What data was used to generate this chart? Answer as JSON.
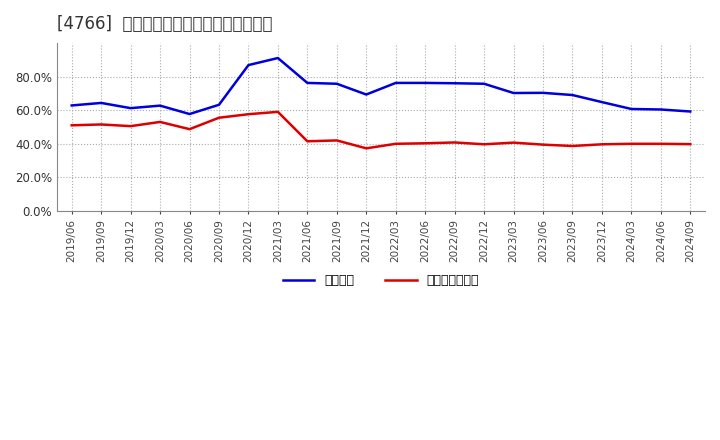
{
  "title": "[4766]  固定比率、固定長期適合率の推移",
  "x_labels": [
    "2019/06",
    "2019/09",
    "2019/12",
    "2020/03",
    "2020/06",
    "2020/09",
    "2020/12",
    "2021/03",
    "2021/06",
    "2021/09",
    "2021/12",
    "2022/03",
    "2022/06",
    "2022/09",
    "2022/12",
    "2023/03",
    "2023/06",
    "2023/09",
    "2023/12",
    "2024/03",
    "2024/06",
    "2024/09"
  ],
  "fixed_ratio": [
    0.628,
    0.643,
    0.612,
    0.627,
    0.577,
    0.632,
    0.868,
    0.91,
    0.762,
    0.757,
    0.693,
    0.762,
    0.762,
    0.76,
    0.757,
    0.702,
    0.703,
    0.69,
    0.648,
    0.607,
    0.604,
    0.592
  ],
  "fixed_long_ratio": [
    0.51,
    0.515,
    0.505,
    0.53,
    0.487,
    0.555,
    0.576,
    0.59,
    0.415,
    0.42,
    0.373,
    0.4,
    0.403,
    0.408,
    0.397,
    0.407,
    0.395,
    0.387,
    0.397,
    0.4,
    0.4,
    0.398
  ],
  "line1_color": "#0000dd",
  "line2_color": "#dd0000",
  "line1_label": "固定比率",
  "line2_label": "固定長期適合率",
  "ylim": [
    0.0,
    1.0
  ],
  "yticks": [
    0.0,
    0.2,
    0.4,
    0.6,
    0.8
  ],
  "background_color": "#ffffff",
  "plot_bg_color": "#ffffff",
  "grid_color": "#aaaaaa",
  "title_fontsize": 12
}
